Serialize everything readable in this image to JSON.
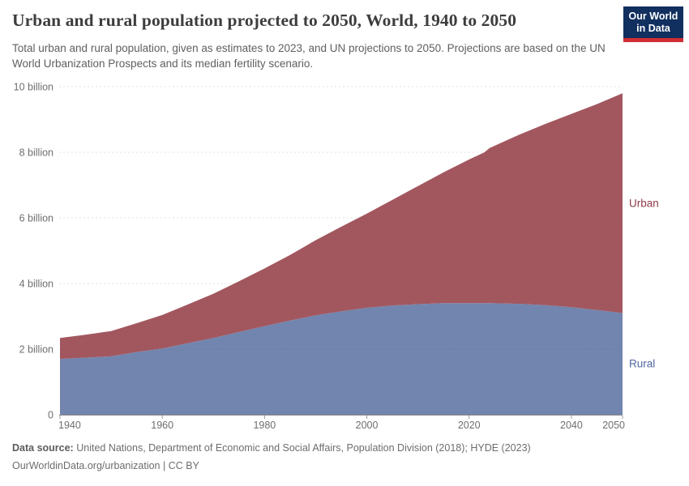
{
  "header": {
    "title": "Urban and rural population projected to 2050, World, 1940 to 2050",
    "subtitle": "Total urban and rural population, given as estimates to 2023, and UN projections to 2050. Projections are based on the UN World Urbanization Prospects and its median fertility scenario.",
    "logo": {
      "line1": "Our World",
      "line2": "in Data",
      "bg_color": "#112f5f",
      "accent_color": "#d12d35"
    }
  },
  "chart_data": {
    "type": "area",
    "stacked": true,
    "title": "Urban and rural population projected to 2050, World, 1940 to 2050",
    "unit": "billion people",
    "x": [
      1940,
      1945,
      1950,
      1955,
      1960,
      1965,
      1970,
      1975,
      1980,
      1985,
      1990,
      1995,
      2000,
      2005,
      2010,
      2015,
      2020,
      2023,
      2024,
      2030,
      2035,
      2040,
      2045,
      2050
    ],
    "series": [
      {
        "name": "Rural",
        "color": "#7285ae",
        "label_color": "#4f66a0",
        "values": [
          1.7,
          1.74,
          1.78,
          1.91,
          2.02,
          2.18,
          2.34,
          2.52,
          2.7,
          2.87,
          3.03,
          3.15,
          3.26,
          3.33,
          3.37,
          3.4,
          3.4,
          3.4,
          3.4,
          3.38,
          3.34,
          3.28,
          3.19,
          3.1
        ]
      },
      {
        "name": "Urban",
        "color": "#a2575f",
        "label_color": "#8d3b49",
        "values": [
          0.64,
          0.7,
          0.77,
          0.88,
          1.02,
          1.18,
          1.35,
          1.55,
          1.76,
          2.0,
          2.29,
          2.58,
          2.87,
          3.22,
          3.6,
          3.99,
          4.38,
          4.6,
          4.73,
          5.17,
          5.53,
          5.89,
          6.28,
          6.7
        ]
      }
    ],
    "xlim": [
      1940,
      2050
    ],
    "ylim": [
      0,
      10
    ],
    "yticks": [
      {
        "value": 0,
        "label": "0"
      },
      {
        "value": 2,
        "label": "2 billion"
      },
      {
        "value": 4,
        "label": "4 billion"
      },
      {
        "value": 6,
        "label": "6 billion"
      },
      {
        "value": 8,
        "label": "8 billion"
      },
      {
        "value": 10,
        "label": "10 billion"
      }
    ],
    "xticks": [
      {
        "value": 1940,
        "label": "1940"
      },
      {
        "value": 1960,
        "label": "1960"
      },
      {
        "value": 1980,
        "label": "1980"
      },
      {
        "value": 2000,
        "label": "2000"
      },
      {
        "value": 2020,
        "label": "2020"
      },
      {
        "value": 2040,
        "label": "2040"
      },
      {
        "value": 2050,
        "label": "2050"
      }
    ],
    "grid": "horizontal dashed",
    "legend": "inline labels at right edge of bands",
    "grid_color_rgba": "rgba(71,71,71,0.16)",
    "axis_color": "#8c8c8c"
  },
  "footer": {
    "datasource_label": "Data source:",
    "datasource_text": "United Nations, Department of Economic and Social Affairs, Population Division (2018); HYDE (2023)",
    "citation": "OurWorldinData.org/urbanization | CC BY"
  }
}
